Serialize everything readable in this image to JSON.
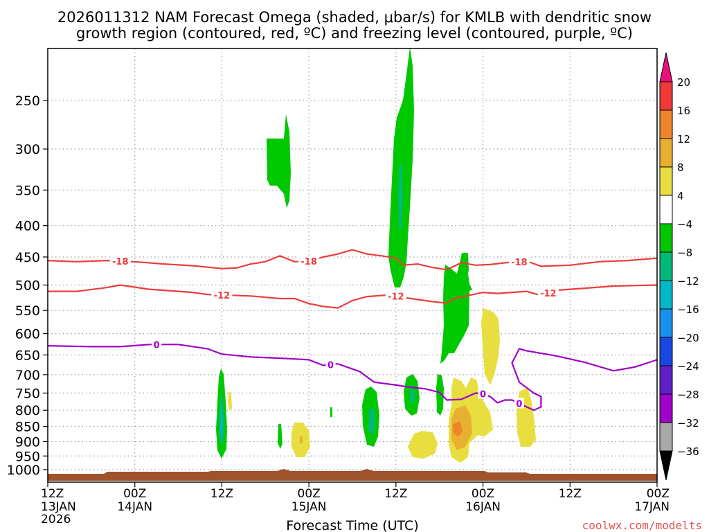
{
  "chart_data": {
    "type": "heatmap",
    "title": {
      "line1": "2026011312 NAM Forecast Omega (shaded, μbar/s) for KMLB with dendritic snow",
      "line2": "growth region (contoured, red, ºC) and freezing level (contoured, purple, ºC)"
    },
    "xlabel": "Forecast Time (UTC)",
    "credit": "coolwx.com/modelts",
    "y_axis": {
      "scale": "log",
      "reversed": true,
      "ylim": [
        1020,
        200
      ],
      "ticks": [
        250,
        300,
        350,
        400,
        450,
        500,
        550,
        600,
        650,
        700,
        750,
        800,
        850,
        900,
        950,
        1000
      ]
    },
    "x_axis": {
      "xlim": [
        0,
        84
      ],
      "ticks": [
        {
          "h": 0,
          "label": "12Z",
          "date": "13JAN",
          "year": "2026"
        },
        {
          "h": 12,
          "label": "00Z",
          "date": "14JAN"
        },
        {
          "h": 24,
          "label": "12Z"
        },
        {
          "h": 36,
          "label": "00Z",
          "date": "15JAN"
        },
        {
          "h": 48,
          "label": "12Z"
        },
        {
          "h": 60,
          "label": "00Z",
          "date": "16JAN"
        },
        {
          "h": 72,
          "label": "12Z"
        },
        {
          "h": 84,
          "label": "00Z",
          "date": "17JAN"
        }
      ]
    },
    "colorbar": {
      "labels": [
        "20",
        "16",
        "12",
        "8",
        "4",
        "−4",
        "−8",
        "−12",
        "−16",
        "−20",
        "−24",
        "−28",
        "−32",
        "−36"
      ],
      "colors": [
        "#e8107a",
        "#f03a3a",
        "#ee8428",
        "#e8b030",
        "#e8de40",
        "#ffffff",
        "#00c800",
        "#00b878",
        "#00b8c8",
        "#1890f0",
        "#1848e0",
        "#6020c8",
        "#a000c8",
        "#a8a8a8",
        "#000000"
      ]
    },
    "series": [
      {
        "name": "-18",
        "color": "#ee3c3c",
        "label_hours": [
          10,
          36,
          65
        ],
        "points": [
          [
            0,
            456
          ],
          [
            4,
            458
          ],
          [
            8,
            456
          ],
          [
            12,
            458
          ],
          [
            16,
            462
          ],
          [
            20,
            465
          ],
          [
            24,
            470
          ],
          [
            26,
            469
          ],
          [
            28,
            462
          ],
          [
            30,
            458
          ],
          [
            32,
            448
          ],
          [
            34,
            458
          ],
          [
            36,
            457
          ],
          [
            38,
            450
          ],
          [
            40,
            445
          ],
          [
            42,
            438
          ],
          [
            44,
            445
          ],
          [
            46,
            448
          ],
          [
            48,
            452
          ],
          [
            49,
            464
          ],
          [
            51,
            462
          ],
          [
            53,
            468
          ],
          [
            55,
            472
          ],
          [
            57,
            460
          ],
          [
            59,
            464
          ],
          [
            61,
            463
          ],
          [
            63,
            460
          ],
          [
            66,
            457
          ],
          [
            68,
            466
          ],
          [
            72,
            464
          ],
          [
            76,
            458
          ],
          [
            80,
            456
          ],
          [
            84,
            452
          ]
        ]
      },
      {
        "name": "-12",
        "color": "#ee3c3c",
        "label_hours": [
          24,
          48,
          69
        ],
        "points": [
          [
            0,
            512
          ],
          [
            4,
            512
          ],
          [
            8,
            505
          ],
          [
            10,
            500
          ],
          [
            14,
            508
          ],
          [
            18,
            512
          ],
          [
            20,
            514
          ],
          [
            22,
            518
          ],
          [
            24,
            519
          ],
          [
            28,
            521
          ],
          [
            32,
            526
          ],
          [
            34,
            526
          ],
          [
            36,
            536
          ],
          [
            38,
            542
          ],
          [
            40,
            545
          ],
          [
            42,
            530
          ],
          [
            44,
            522
          ],
          [
            47,
            519
          ],
          [
            49,
            524
          ],
          [
            51,
            528
          ],
          [
            53,
            532
          ],
          [
            55,
            535
          ],
          [
            56,
            526
          ],
          [
            58,
            520
          ],
          [
            60,
            514
          ],
          [
            62,
            516
          ],
          [
            66,
            512
          ],
          [
            68,
            520
          ],
          [
            70,
            510
          ],
          [
            74,
            506
          ],
          [
            78,
            502
          ],
          [
            84,
            500
          ]
        ]
      },
      {
        "name": "0",
        "color": "#a000c8",
        "label_hours": [
          15,
          39,
          60,
          65
        ],
        "points": [
          [
            0,
            628
          ],
          [
            6,
            630
          ],
          [
            10,
            630
          ],
          [
            14,
            625
          ],
          [
            18,
            625
          ],
          [
            22,
            635
          ],
          [
            24,
            648
          ],
          [
            28,
            655
          ],
          [
            32,
            658
          ],
          [
            34,
            660
          ],
          [
            36,
            662
          ],
          [
            38,
            676
          ],
          [
            40,
            672
          ],
          [
            43,
            692
          ],
          [
            45,
            720
          ],
          [
            48,
            728
          ],
          [
            50,
            734
          ],
          [
            52,
            738
          ],
          [
            54,
            748
          ],
          [
            55,
            770
          ],
          [
            57,
            768
          ],
          [
            59,
            750
          ],
          [
            60,
            752
          ],
          [
            61,
            760
          ],
          [
            62,
            778
          ],
          [
            63,
            770
          ],
          [
            64,
            770
          ],
          [
            65,
            780
          ],
          [
            67,
            800
          ],
          [
            68,
            790
          ],
          [
            68,
            760
          ],
          [
            67,
            750
          ],
          [
            65,
            720
          ],
          [
            64,
            670
          ],
          [
            65,
            635
          ],
          [
            66,
            640
          ],
          [
            70,
            652
          ],
          [
            74,
            668
          ],
          [
            78,
            690
          ],
          [
            81,
            680
          ],
          [
            84,
            662
          ]
        ]
      }
    ]
  }
}
